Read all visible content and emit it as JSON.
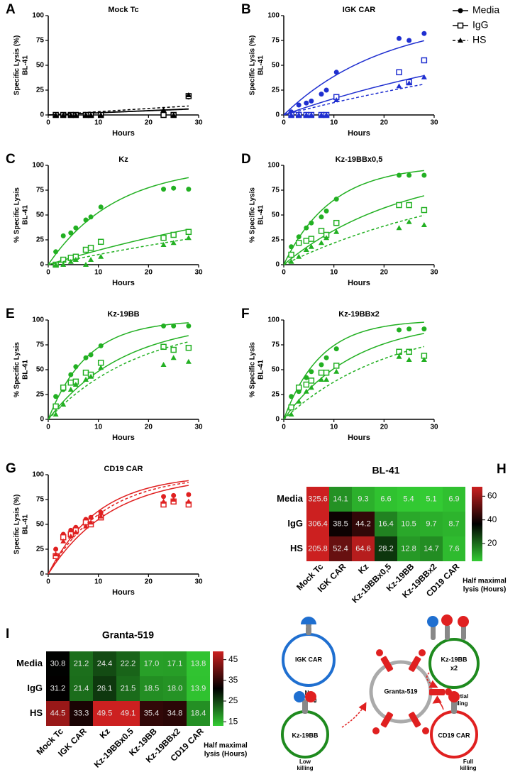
{
  "chart_data": [
    {
      "type": "line",
      "panel_label": "A",
      "title": "Mock Tc",
      "ylabel": [
        "Specific Lysis (%)",
        "BL-41"
      ],
      "xlabel": "Hours",
      "color": "#000000",
      "x": [
        1.5,
        3,
        4.5,
        5.5,
        7.5,
        8.5,
        10.5,
        23,
        25,
        28
      ],
      "xlim": [
        0,
        30
      ],
      "xticks": [
        0,
        10,
        20,
        30
      ],
      "ylim": [
        0,
        100
      ],
      "yticks": [
        0,
        25,
        50,
        75,
        100
      ],
      "series": [
        {
          "name": "Media",
          "marker": "circle",
          "line_style": "solid",
          "values": [
            0,
            0,
            0,
            0,
            0,
            0,
            0,
            0,
            0,
            18
          ],
          "fit_max": 100,
          "fit_half_time": 325.6
        },
        {
          "name": "IgG",
          "marker": "square",
          "line_style": "solid",
          "values": [
            0,
            0,
            0,
            0,
            0,
            0,
            0,
            0,
            0,
            19
          ],
          "fit_max": 100,
          "fit_half_time": 306.4
        },
        {
          "name": "HS",
          "marker": "triangle",
          "line_style": "dashed",
          "values": [
            0,
            0,
            0,
            0,
            0,
            0,
            0,
            5,
            0,
            20
          ],
          "fit_max": 100,
          "fit_half_time": 205.8
        }
      ]
    },
    {
      "type": "line",
      "panel_label": "B",
      "title": "IGK CAR",
      "ylabel": [
        "Specific Lysis (%)",
        "BL-41"
      ],
      "xlabel": "Hours",
      "color": "#1f2fd0",
      "legend": "outside-right",
      "x": [
        1.5,
        3,
        4.5,
        5.5,
        7.5,
        8.5,
        10.5,
        23,
        25,
        28
      ],
      "xlim": [
        0,
        30
      ],
      "xticks": [
        0,
        10,
        20,
        30
      ],
      "ylim": [
        0,
        100
      ],
      "yticks": [
        0,
        25,
        50,
        75,
        100
      ],
      "series": [
        {
          "name": "Media",
          "marker": "circle",
          "line_style": "solid",
          "values": [
            3,
            10,
            12,
            14,
            21,
            25,
            43,
            77,
            75,
            82
          ],
          "fit_max": 100,
          "fit_half_time": 14.1
        },
        {
          "name": "IgG",
          "marker": "square",
          "line_style": "solid",
          "values": [
            0,
            0,
            0,
            0,
            0,
            0,
            18,
            43,
            33,
            55
          ],
          "fit_max": 100,
          "fit_half_time": 38.5
        },
        {
          "name": "HS",
          "marker": "triangle",
          "line_style": "dashed",
          "values": [
            0,
            0,
            0,
            0,
            0,
            0,
            15,
            29,
            32,
            38
          ],
          "fit_max": 100,
          "fit_half_time": 52.4
        }
      ]
    },
    {
      "type": "line",
      "panel_label": "C",
      "title": "Kz",
      "ylabel": [
        "% Specific Lysis",
        "BL-41"
      ],
      "xlabel": "Hours",
      "color": "#22b022",
      "x": [
        1.5,
        3,
        4.5,
        5.5,
        7.5,
        8.5,
        10.5,
        23,
        25,
        28
      ],
      "xlim": [
        0,
        30
      ],
      "xticks": [
        0,
        10,
        20,
        30
      ],
      "ylim": [
        0,
        100
      ],
      "yticks": [
        0,
        25,
        50,
        75,
        100
      ],
      "series": [
        {
          "name": "Media",
          "marker": "circle",
          "line_style": "solid",
          "values": [
            13,
            29,
            32,
            37,
            45,
            48,
            58,
            76,
            77,
            76
          ],
          "fit_max": 100,
          "fit_half_time": 9.3
        },
        {
          "name": "IgG",
          "marker": "square",
          "line_style": "solid",
          "values": [
            0,
            5,
            7,
            8,
            15,
            17,
            23,
            27,
            30,
            33
          ],
          "fit_max": 100,
          "fit_half_time": 44.2
        },
        {
          "name": "HS",
          "marker": "triangle",
          "line_style": "dashed",
          "values": [
            0,
            0,
            3,
            5,
            0,
            5,
            8,
            20,
            22,
            27
          ],
          "fit_max": 100,
          "fit_half_time": 64.6
        }
      ]
    },
    {
      "type": "line",
      "panel_label": "D",
      "title": "Kz-19BBx0,5",
      "ylabel": [
        "% Specific Lysis",
        "BL-41"
      ],
      "xlabel": "Hours",
      "color": "#22b022",
      "x": [
        1.5,
        3,
        4.5,
        5.5,
        7.5,
        8.5,
        10.5,
        23,
        25,
        28
      ],
      "xlim": [
        0,
        30
      ],
      "xticks": [
        0,
        10,
        20,
        30
      ],
      "ylim": [
        0,
        100
      ],
      "yticks": [
        0,
        25,
        50,
        75,
        100
      ],
      "series": [
        {
          "name": "Media",
          "marker": "circle",
          "line_style": "solid",
          "values": [
            18,
            28,
            37,
            42,
            48,
            54,
            66,
            90,
            90,
            90
          ],
          "fit_max": 100,
          "fit_half_time": 6.6
        },
        {
          "name": "IgG",
          "marker": "square",
          "line_style": "solid",
          "values": [
            10,
            22,
            24,
            26,
            34,
            30,
            42,
            60,
            60,
            55
          ],
          "fit_max": 100,
          "fit_half_time": 16.4
        },
        {
          "name": "HS",
          "marker": "triangle",
          "line_style": "dashed",
          "values": [
            3,
            8,
            15,
            18,
            22,
            27,
            33,
            37,
            43,
            40
          ],
          "fit_max": 100,
          "fit_half_time": 28.2
        }
      ]
    },
    {
      "type": "line",
      "panel_label": "E",
      "title": "Kz-19BB",
      "ylabel": [
        "% Specific Lysis",
        "BL-41"
      ],
      "xlabel": "Hours",
      "color": "#22b022",
      "x": [
        1.5,
        3,
        4.5,
        5.5,
        7.5,
        8.5,
        10.5,
        23,
        25,
        28
      ],
      "xlim": [
        0,
        30
      ],
      "xticks": [
        0,
        10,
        20,
        30
      ],
      "ylim": [
        0,
        100
      ],
      "yticks": [
        0,
        25,
        50,
        75,
        100
      ],
      "series": [
        {
          "name": "Media",
          "marker": "circle",
          "line_style": "solid",
          "values": [
            23,
            30,
            45,
            53,
            62,
            65,
            74,
            94,
            94,
            94
          ],
          "fit_max": 100,
          "fit_half_time": 5.4
        },
        {
          "name": "IgG",
          "marker": "square",
          "line_style": "solid",
          "values": [
            13,
            32,
            37,
            38,
            47,
            45,
            57,
            73,
            70,
            72
          ],
          "fit_max": 100,
          "fit_half_time": 10.5
        },
        {
          "name": "HS",
          "marker": "triangle",
          "line_style": "dashed",
          "values": [
            5,
            15,
            30,
            35,
            40,
            43,
            52,
            55,
            62,
            58
          ],
          "fit_max": 100,
          "fit_half_time": 12.8
        }
      ]
    },
    {
      "type": "line",
      "panel_label": "F",
      "title": "Kz-19BBx2",
      "ylabel": [
        "% Specific Lysis",
        "BL-41"
      ],
      "xlabel": "Hours",
      "color": "#22b022",
      "x": [
        1.5,
        3,
        4.5,
        5.5,
        7.5,
        8.5,
        10.5,
        23,
        25,
        28
      ],
      "xlim": [
        0,
        30
      ],
      "xticks": [
        0,
        10,
        20,
        30
      ],
      "ylim": [
        0,
        100
      ],
      "yticks": [
        0,
        25,
        50,
        75,
        100
      ],
      "series": [
        {
          "name": "Media",
          "marker": "circle",
          "line_style": "solid",
          "values": [
            23,
            28,
            42,
            48,
            55,
            62,
            71,
            90,
            91,
            91
          ],
          "fit_max": 100,
          "fit_half_time": 5.1
        },
        {
          "name": "IgG",
          "marker": "square",
          "line_style": "solid",
          "values": [
            12,
            32,
            35,
            39,
            47,
            47,
            54,
            68,
            68,
            64
          ],
          "fit_max": 100,
          "fit_half_time": 9.7
        },
        {
          "name": "HS",
          "marker": "triangle",
          "line_style": "dashed",
          "values": [
            5,
            18,
            28,
            32,
            40,
            40,
            48,
            63,
            60,
            60
          ],
          "fit_max": 100,
          "fit_half_time": 14.7
        }
      ]
    },
    {
      "type": "line",
      "panel_label": "G",
      "title": "CD19 CAR",
      "ylabel": [
        "Specific Lysis (%)",
        "BL-41"
      ],
      "xlabel": "Hours",
      "color": "#e02020",
      "x": [
        1.5,
        3,
        4.5,
        5.5,
        7.5,
        8.5,
        10.5,
        23,
        25,
        28
      ],
      "xlim": [
        0,
        30
      ],
      "xticks": [
        0,
        10,
        20,
        30
      ],
      "ylim": [
        0,
        100
      ],
      "yticks": [
        0,
        25,
        50,
        75,
        100
      ],
      "series": [
        {
          "name": "Media",
          "marker": "circle",
          "line_style": "solid",
          "values": [
            25,
            40,
            44,
            47,
            55,
            57,
            62,
            78,
            79,
            80
          ],
          "fit_max": 100,
          "fit_half_time": 6.9
        },
        {
          "name": "IgG",
          "marker": "square",
          "line_style": "solid",
          "values": [
            18,
            37,
            40,
            44,
            52,
            50,
            57,
            70,
            73,
            70
          ],
          "fit_max": 100,
          "fit_half_time": 8.7
        },
        {
          "name": "HS",
          "marker": "triangle",
          "line_style": "dashed",
          "values": [
            20,
            33,
            38,
            42,
            48,
            52,
            58,
            73,
            75,
            73
          ],
          "fit_max": 100,
          "fit_half_time": 7.6
        }
      ]
    },
    {
      "type": "heatmap",
      "panel_label": "H",
      "title": "BL-41",
      "rows": [
        "Media",
        "IgG",
        "HS"
      ],
      "columns": [
        "Mock Tc",
        "IGK CAR",
        "Kz",
        "Kz-19BBx0,5",
        "Kz-19BB",
        "Kz-19BBx2",
        "CD19 CAR"
      ],
      "values": [
        [
          325.6,
          14.1,
          9.3,
          6.6,
          5.4,
          5.1,
          6.9
        ],
        [
          306.4,
          38.5,
          44.2,
          16.4,
          10.5,
          9.7,
          8.7
        ],
        [
          205.8,
          52.4,
          64.6,
          28.2,
          12.8,
          14.7,
          7.6
        ]
      ],
      "value_labels": [
        [
          "325.6",
          "14.1",
          "9.3",
          "6.6",
          "5.4",
          "5.1",
          "6.9"
        ],
        [
          "306.4",
          "38.5",
          "44.2",
          "16.4",
          "10.5",
          "9.7",
          "8.7"
        ],
        [
          "205.8",
          "52.4",
          "64.6",
          "28.2",
          "12.8",
          "14.7",
          "7.6"
        ]
      ],
      "zlim": [
        5,
        68
      ],
      "colorbar_ticks": [
        20,
        40,
        60
      ],
      "colorbar_label": [
        "Half maximal",
        "lysis (Hours)"
      ],
      "colors": [
        "#33cc33",
        "#000000",
        "#cc2020"
      ]
    },
    {
      "type": "heatmap",
      "panel_label": "I",
      "title": "Granta-519",
      "rows": [
        "Media",
        "IgG",
        "HS"
      ],
      "columns": [
        "Mock Tc",
        "IGK CAR",
        "Kz",
        "Kz-19BBx0.5",
        "Kz-19BB",
        "Kz-19BBx2",
        "CD19 CAR"
      ],
      "values": [
        [
          30.8,
          21.2,
          24.4,
          22.2,
          17.0,
          17.1,
          13.8
        ],
        [
          31.2,
          21.4,
          26.1,
          21.5,
          18.5,
          18.0,
          13.9
        ],
        [
          44.5,
          33.3,
          49.5,
          49.1,
          35.4,
          34.8,
          18.4
        ]
      ],
      "value_labels": [
        [
          "30.8",
          "21.2",
          "24.4",
          "22.2",
          "17.0",
          "17.1",
          "13.8"
        ],
        [
          "31.2",
          "21.4",
          "26.1",
          "21.5",
          "18.5",
          "18.0",
          "13.9"
        ],
        [
          "44.5",
          "33.3",
          "49.5",
          "49.1",
          "35.4",
          "34.8",
          "18.4"
        ]
      ],
      "zlim": [
        13,
        49
      ],
      "colorbar_ticks": [
        15,
        25,
        35,
        45
      ],
      "colorbar_label": [
        "Half maximal",
        "lysis (Hours)"
      ],
      "colors": [
        "#33cc33",
        "#000000",
        "#cc2020"
      ]
    }
  ],
  "diagram": {
    "target": "Granta-519",
    "cells": [
      {
        "label": [
          "IGK CAR"
        ],
        "outcome": [
          "No",
          "killing"
        ]
      },
      {
        "label": [
          "Kz-19BB",
          "x2"
        ],
        "outcome": [
          "Partial",
          "killing"
        ]
      },
      {
        "label": [
          "Kz-19BB"
        ],
        "outcome": [
          "Low",
          "killing"
        ]
      },
      {
        "label": [
          "CD19 CAR"
        ],
        "outcome": [
          "Full",
          "killing"
        ]
      }
    ]
  }
}
